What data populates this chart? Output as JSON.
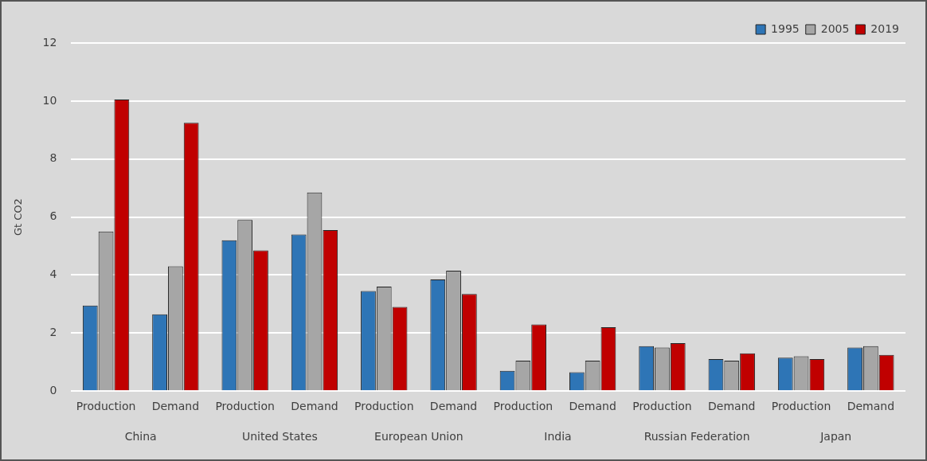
{
  "chart_data": {
    "type": "bar",
    "ylabel": "Gt CO2",
    "categories": [
      "Production",
      "Demand",
      "Production",
      "Demand",
      "Production",
      "Demand",
      "Production",
      "Demand",
      "Production",
      "Demand",
      "Production",
      "Demand"
    ],
    "series": [
      {
        "name": "1995",
        "color": "#2e75b6",
        "values": [
          2.95,
          2.65,
          5.2,
          5.4,
          3.45,
          3.85,
          0.7,
          0.65,
          1.55,
          1.1,
          1.15,
          1.5
        ]
      },
      {
        "name": "2005",
        "color": "#a6a6a6",
        "values": [
          5.5,
          4.3,
          5.9,
          6.85,
          3.6,
          4.15,
          1.05,
          1.05,
          1.5,
          1.05,
          1.2,
          1.55
        ]
      },
      {
        "name": "2019",
        "color": "#c00000",
        "values": [
          10.05,
          9.25,
          4.85,
          5.55,
          2.9,
          3.35,
          2.3,
          2.2,
          1.65,
          1.3,
          1.1,
          1.25
        ]
      }
    ],
    "annotations": [
      "China",
      "United States",
      "European Union",
      "India",
      "Russian Federation",
      "Japan"
    ],
    "ylim": [
      0,
      12
    ],
    "yticks": [
      0,
      2,
      4,
      6,
      8,
      10,
      12
    ],
    "grid": "y",
    "legend": "top right"
  }
}
